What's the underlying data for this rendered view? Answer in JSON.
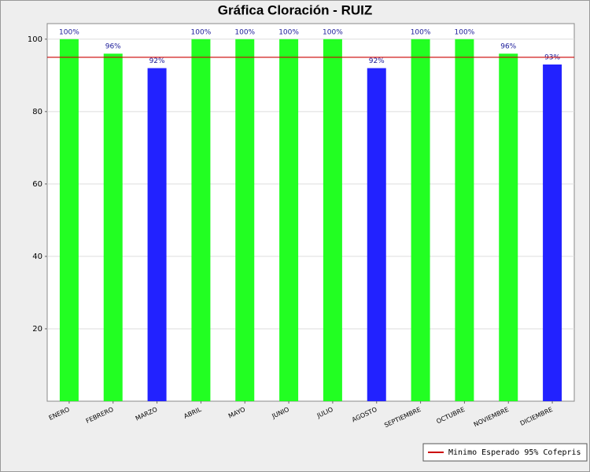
{
  "chart_data": {
    "type": "bar",
    "title": "Gráfica Cloración - RUIZ",
    "categories": [
      "ENERO",
      "FEBRERO",
      "MARZO",
      "ABRIL",
      "MAYO",
      "JUNIO",
      "JULIO",
      "AGOSTO",
      "SEPTIEMBRE",
      "OCTUBRE",
      "NOVIEMBRE",
      "DICIEMBRE"
    ],
    "values": [
      100,
      96,
      92,
      100,
      100,
      100,
      100,
      92,
      100,
      100,
      96,
      93
    ],
    "value_labels": [
      "100%",
      "96%",
      "92%",
      "100%",
      "100%",
      "100%",
      "100%",
      "92%",
      "100%",
      "100%",
      "96%",
      "93%"
    ],
    "colors": [
      "#22ff22",
      "#22ff22",
      "#2222ff",
      "#22ff22",
      "#22ff22",
      "#22ff22",
      "#22ff22",
      "#2222ff",
      "#22ff22",
      "#22ff22",
      "#22ff22",
      "#2222ff"
    ],
    "ylim": [
      0,
      104.3
    ],
    "yticks": [
      20,
      40,
      60,
      80,
      100
    ],
    "grid": true,
    "reference_line": {
      "name": "Minimo Esperado 95% Cofepris",
      "value": 95,
      "color": "#cc0000"
    },
    "legend": "bottom-right"
  }
}
